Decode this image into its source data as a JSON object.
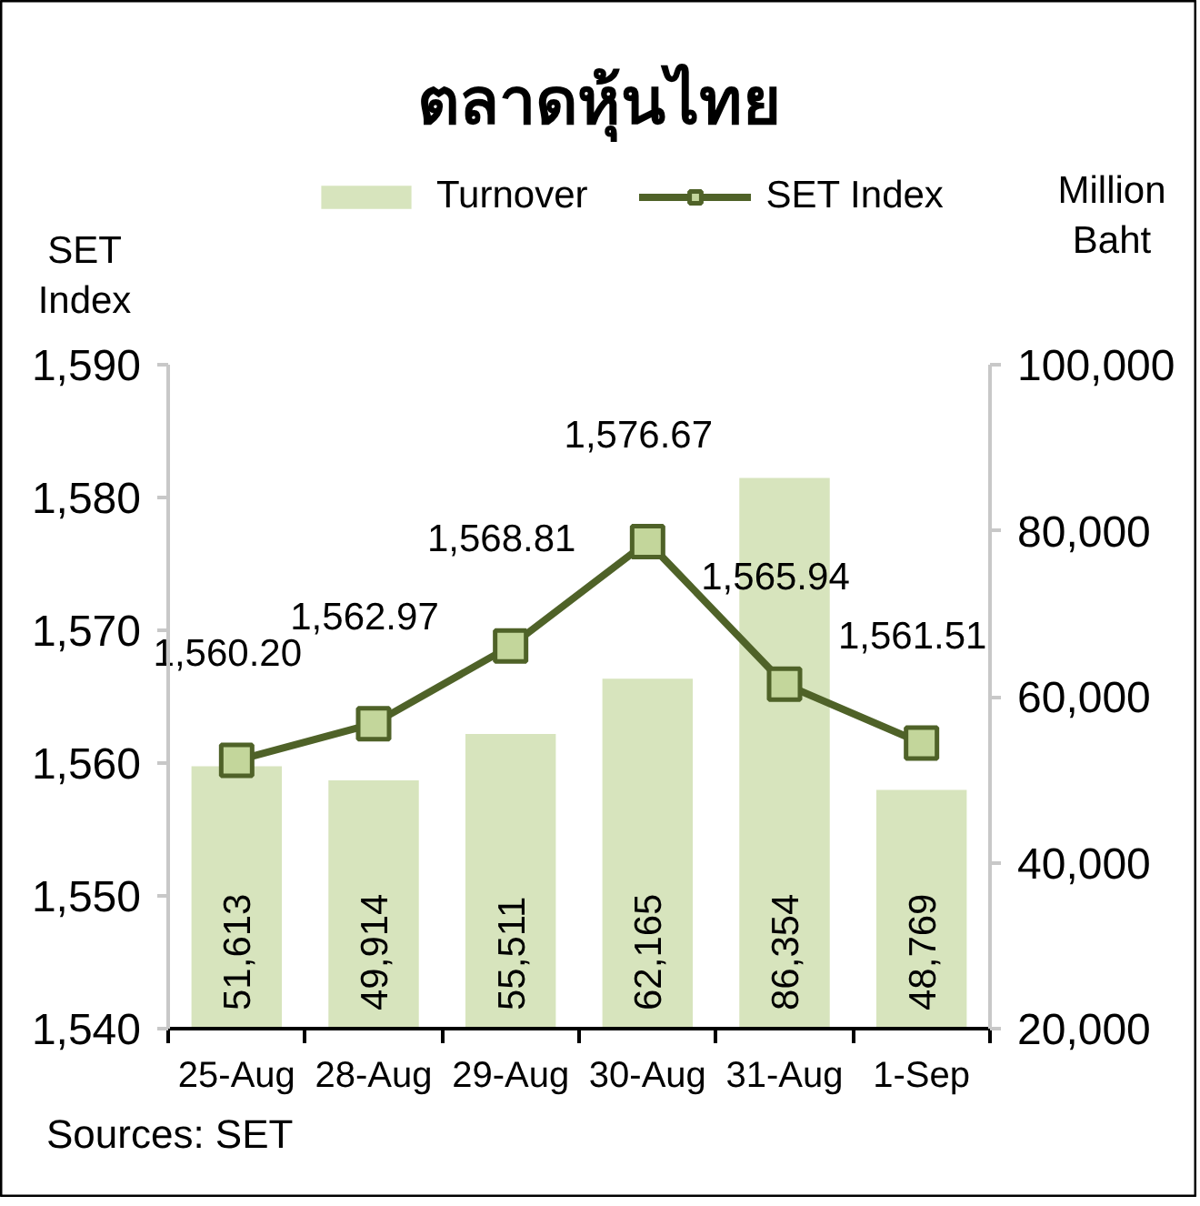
{
  "chart_data": {
    "type": "bar",
    "title": "ตลาดหุ้นไทย",
    "ylabel": "SET Index",
    "y2label": "Million Baht",
    "categories": [
      "25-Aug",
      "28-Aug",
      "29-Aug",
      "30-Aug",
      "31-Aug",
      "1-Sep"
    ],
    "series": [
      {
        "name": "Turnover",
        "axis": "y2",
        "color": "#d7e4bd",
        "values": [
          51613,
          49914,
          55511,
          62165,
          86354,
          48769
        ],
        "value_labels": [
          "51,613",
          "49,914",
          "55,511",
          "62,165",
          "86,354",
          "48,769"
        ]
      },
      {
        "name": "SET Index",
        "type": "line",
        "axis": "y",
        "color": "#4f6228",
        "values": [
          1560.2,
          1562.97,
          1568.81,
          1576.67,
          1565.94,
          1561.51
        ],
        "value_labels": [
          "1,560.20",
          "1,562.97",
          "1,568.81",
          "1,576.67",
          "1,565.94",
          "1,561.51"
        ]
      }
    ],
    "ylim": [
      1540,
      1590
    ],
    "yticks": [
      {
        "value": 1540,
        "label": "1,540"
      },
      {
        "value": 1550,
        "label": "1,550"
      },
      {
        "value": 1560,
        "label": "1,560"
      },
      {
        "value": 1570,
        "label": "1,570"
      },
      {
        "value": 1580,
        "label": "1,580"
      },
      {
        "value": 1590,
        "label": "1,590"
      }
    ],
    "y2lim": [
      20000,
      100000
    ],
    "y2ticks": [
      {
        "value": 20000,
        "label": "20,000"
      },
      {
        "value": 40000,
        "label": "40,000"
      },
      {
        "value": 60000,
        "label": "60,000"
      },
      {
        "value": 80000,
        "label": "80,000"
      },
      {
        "value": 100000,
        "label": "100,000"
      }
    ],
    "legend": "top",
    "marker": "square",
    "line_style": "solid",
    "annotations": [
      "Sources: SET"
    ]
  }
}
